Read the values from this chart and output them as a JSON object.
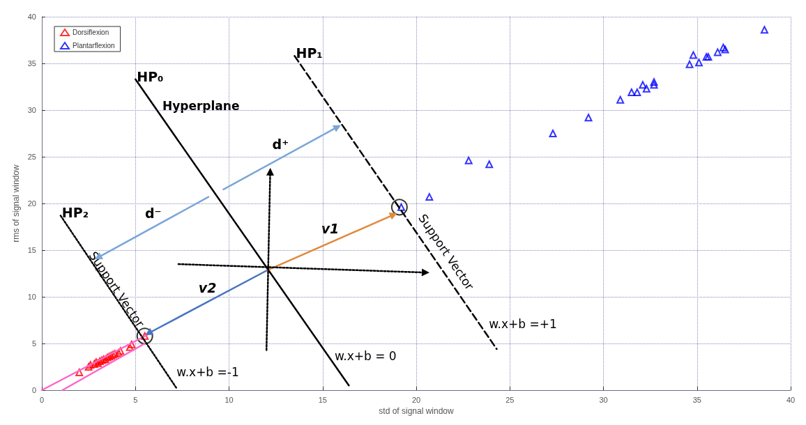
{
  "chart_data": {
    "type": "scatter",
    "xlabel": "std of signal window",
    "ylabel": "rms of signal window",
    "xlim": [
      0,
      40
    ],
    "ylim": [
      0,
      40
    ],
    "xticks": [
      0,
      5,
      10,
      15,
      20,
      25,
      30,
      35,
      40
    ],
    "yticks": [
      0,
      5,
      10,
      15,
      20,
      25,
      30,
      35,
      40
    ],
    "grid": true,
    "legend": "top left",
    "marker": "triangle",
    "series": [
      {
        "name": "Dorsiflexion",
        "color": "#ff0000",
        "x": [
          2.0,
          2.5,
          2.6,
          2.8,
          2.9,
          3.0,
          3.1,
          3.2,
          3.3,
          3.4,
          3.5,
          3.6,
          3.7,
          3.8,
          3.9,
          4.1,
          4.2,
          4.7,
          4.8,
          5.5
        ],
        "values": [
          1.9,
          2.5,
          2.7,
          2.8,
          3.0,
          2.9,
          3.1,
          3.2,
          3.3,
          3.3,
          3.5,
          3.6,
          3.7,
          3.8,
          3.9,
          4.0,
          4.2,
          4.6,
          4.9,
          5.8
        ]
      },
      {
        "name": "Plantarflexion",
        "color": "#0000ff",
        "x": [
          19.2,
          20.7,
          22.8,
          23.9,
          27.3,
          29.2,
          30.9,
          31.5,
          31.8,
          32.1,
          32.3,
          32.7,
          32.7,
          34.6,
          34.8,
          35.1,
          35.5,
          35.6,
          36.1,
          36.4,
          36.5,
          38.6
        ],
        "values": [
          19.6,
          20.7,
          24.6,
          24.2,
          27.5,
          29.2,
          31.1,
          31.9,
          31.9,
          32.7,
          32.3,
          33.0,
          32.7,
          34.9,
          35.9,
          35.1,
          35.7,
          35.7,
          36.2,
          36.7,
          36.5,
          38.6
        ]
      },
      {
        "type": "scatter",
        "marker": "circle",
        "color": "#000000",
        "x": [
          19.1,
          5.5
        ],
        "values": [
          19.6,
          5.8
        ]
      },
      {
        "type": "line",
        "color": "#ff66cc",
        "marker": "none",
        "line_style": "solid",
        "x": [
          0,
          5.8
        ],
        "values": [
          0,
          6.1
        ]
      },
      {
        "type": "line",
        "color": "#ff66cc",
        "marker": "none",
        "line_style": "solid",
        "x": [
          1.1,
          5.5
        ],
        "values": [
          0,
          5.0
        ]
      },
      {
        "type": "line",
        "name": "HP₀",
        "color": "#000000",
        "marker": "none",
        "line_style": "solid",
        "x": [
          5,
          16.4
        ],
        "values": [
          33.3,
          0.5
        ]
      },
      {
        "type": "line",
        "name": "HP₁",
        "color": "#000000",
        "marker": "none",
        "line_style": "dashed",
        "x": [
          13.5,
          24.3
        ],
        "values": [
          35.8,
          4.4
        ]
      },
      {
        "type": "line",
        "name": "HP₂",
        "color": "#000000",
        "marker": "none",
        "line_style": "dotted",
        "x": [
          1,
          7.2
        ],
        "values": [
          18.7,
          0.2
        ]
      },
      {
        "type": "line",
        "name": "v1",
        "color": "#e08a3c",
        "marker": "triangle",
        "line_style": "solid",
        "x": [
          12,
          18.8
        ],
        "values": [
          12.8,
          18.8
        ]
      },
      {
        "type": "line",
        "name": "v2",
        "color": "#4a74c0",
        "marker": "triangle",
        "line_style": "solid",
        "x": [
          12,
          5.7
        ],
        "values": [
          12.8,
          6.1
        ]
      },
      {
        "type": "line",
        "name": "d⁺",
        "color": "#7aa6d8",
        "marker": "triangle",
        "line_style": "solid",
        "x": [
          9.7,
          15.8
        ],
        "values": [
          21.5,
          28.2
        ]
      },
      {
        "type": "line",
        "name": "d⁻",
        "color": "#7aa6d8",
        "marker": "triangle",
        "line_style": "solid",
        "x": [
          8.9,
          3.0
        ],
        "values": [
          20.7,
          14.2
        ]
      },
      {
        "type": "line",
        "color": "#000000",
        "marker": "triangle",
        "line_style": "dotted",
        "x": [
          12,
          12.2
        ],
        "values": [
          4.3,
          23.4
        ]
      },
      {
        "type": "line",
        "color": "#000000",
        "marker": "triangle",
        "line_style": "dotted",
        "x": [
          7.3,
          20.5
        ],
        "values": [
          13.5,
          12.6
        ]
      }
    ],
    "annotations": [
      "Hyperplane",
      "Support Vector",
      "Support Vector",
      "w.x+b =+1",
      "w.x+b = 0",
      "w.x+b =-1"
    ]
  }
}
